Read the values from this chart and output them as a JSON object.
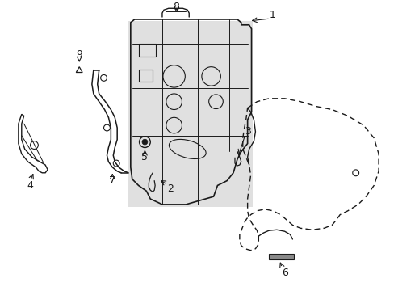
{
  "background_color": "#ffffff",
  "line_color": "#1a1a1a",
  "shade_color": "#e0e0e0",
  "fig_w": 4.89,
  "fig_h": 3.6,
  "dpi": 100
}
